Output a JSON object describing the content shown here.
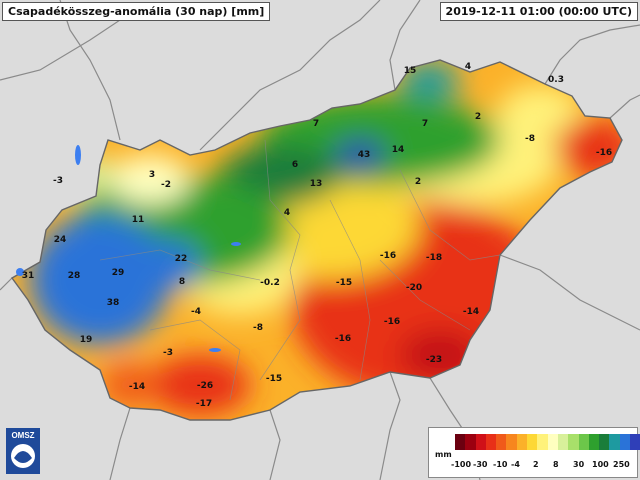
{
  "title": "Csapadékösszeg-anomália (30 nap) [mm]",
  "timestamp": "2019-12-11 01:00 (00:00 UTC)",
  "logo_text": "OMSZ",
  "legend": {
    "unit": "mm",
    "colors": [
      "#6b0010",
      "#9c0010",
      "#d01018",
      "#e83018",
      "#f05a1a",
      "#f7861e",
      "#fbb129",
      "#fdd835",
      "#fff27a",
      "#ffffc0",
      "#d8f09a",
      "#a8e06a",
      "#6cc64a",
      "#2ea02e",
      "#1a7d3a",
      "#1e9aa0",
      "#2a73d8",
      "#2f3fb8",
      "#6a2fb0",
      "#9a3cc8"
    ],
    "ticks": [
      "-100",
      "-30",
      "-10",
      "-4",
      "2",
      "8",
      "30",
      "100",
      "250"
    ]
  },
  "map_labels": [
    {
      "text": "15"
    },
    {
      "text": "4"
    },
    {
      "text": "0.3"
    },
    {
      "text": "7"
    },
    {
      "text": "7"
    },
    {
      "text": "2"
    },
    {
      "text": "-8"
    },
    {
      "text": "-16"
    },
    {
      "text": "43"
    },
    {
      "text": "14"
    },
    {
      "text": "6"
    },
    {
      "text": "13"
    },
    {
      "text": "2"
    },
    {
      "text": "-3"
    },
    {
      "text": "3"
    },
    {
      "text": "-2"
    },
    {
      "text": "4"
    },
    {
      "text": "11"
    },
    {
      "text": "24"
    },
    {
      "text": "31"
    },
    {
      "text": "28"
    },
    {
      "text": "29"
    },
    {
      "text": "22"
    },
    {
      "text": "8"
    },
    {
      "text": "38"
    },
    {
      "text": "-0.2"
    },
    {
      "text": "-16"
    },
    {
      "text": "-18"
    },
    {
      "text": "-15"
    },
    {
      "text": "-20"
    },
    {
      "text": "-4"
    },
    {
      "text": "-8"
    },
    {
      "text": "-16"
    },
    {
      "text": "-14"
    },
    {
      "text": "19"
    },
    {
      "text": "-16"
    },
    {
      "text": "-3"
    },
    {
      "text": "-14"
    },
    {
      "text": "-26"
    },
    {
      "text": "-23"
    },
    {
      "text": "-15"
    },
    {
      "text": "-17"
    }
  ]
}
